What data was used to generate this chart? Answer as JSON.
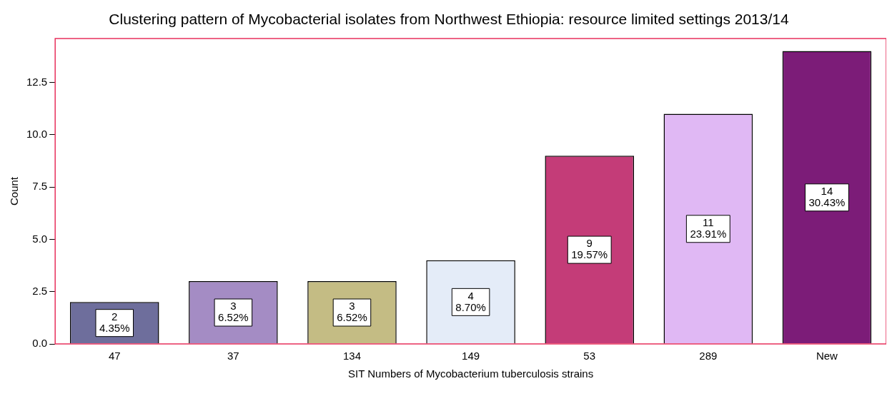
{
  "chart_data": {
    "type": "bar",
    "title": "Clustering pattern of Mycobacterial isolates from Northwest Ethiopia: resource limited settings 2013/14",
    "xlabel": "SIT Numbers of Mycobacterium tuberculosis strains",
    "ylabel": "Count",
    "categories": [
      "47",
      "37",
      "134",
      "149",
      "53",
      "289",
      "New"
    ],
    "values": [
      2,
      3,
      3,
      4,
      9,
      11,
      14
    ],
    "colors": [
      "#6e6e9c",
      "#a48cc4",
      "#c4bc84",
      "#e4ecf8",
      "#c43c78",
      "#e0b8f4",
      "#7c1c78"
    ],
    "value_labels": [
      "2\n4.35%",
      "3\n6.52%",
      "3\n6.52%",
      "4\n8.70%",
      "9\n19.57%",
      "11\n23.91%",
      "14\n30.43%"
    ],
    "ylim": [
      0,
      14.6
    ],
    "yticks": [
      {
        "value": 0,
        "label": "0.0"
      },
      {
        "value": 2.5,
        "label": "2.5"
      },
      {
        "value": 5,
        "label": "5.0"
      },
      {
        "value": 7.5,
        "label": "7.5"
      },
      {
        "value": 10,
        "label": "10.0"
      },
      {
        "value": 12.5,
        "label": "12.5"
      }
    ],
    "grid": false,
    "legend": false
  }
}
